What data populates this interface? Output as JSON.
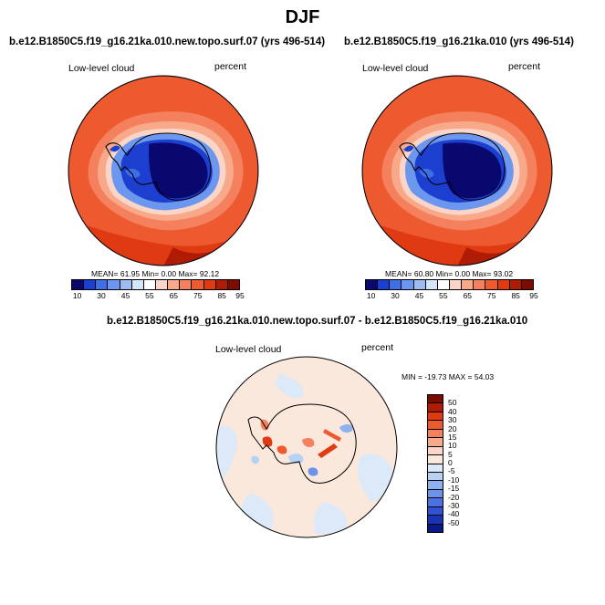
{
  "figure": {
    "title": "DJF"
  },
  "panels": [
    {
      "title": "b.e12.B1850C5.f19_g16.21ka.010.new.topo.surf.07 (yrs 496-514)",
      "left_label": "Low-level cloud",
      "right_label": "percent",
      "stats": "MEAN=  61.95  Min=   0.00  Max=  92.12"
    },
    {
      "title": "b.e12.B1850C5.f19_g16.21ka.010 (yrs 496-514)",
      "left_label": "Low-level cloud",
      "right_label": "percent",
      "stats": "MEAN=  60.80  Min=   0.00  Max=  93.02"
    }
  ],
  "diff_panel": {
    "title": "b.e12.B1850C5.f19_g16.21ka.010.new.topo.surf.07 - b.e12.B1850C5.f19_g16.21ka.010",
    "left_label": "Low-level cloud",
    "right_label": "percent",
    "minmax": "MIN = -19.73 MAX =  54.03"
  },
  "colorbar_abs": {
    "colors": [
      "#08086e",
      "#1c3fd0",
      "#3f6fe6",
      "#6c97ee",
      "#9dbdf2",
      "#d6e6fa",
      "#ffffff",
      "#fbd6c8",
      "#f7a98a",
      "#f4805d",
      "#ee5a30",
      "#e03a12",
      "#b01b06",
      "#7a0c00"
    ],
    "labels": [
      "10",
      "30",
      "45",
      "55",
      "65",
      "75",
      "85",
      "95"
    ]
  },
  "colorbar_diff": {
    "colors": [
      "#7a0c00",
      "#b01b06",
      "#e03a12",
      "#ee5a30",
      "#f4805d",
      "#f7a98a",
      "#fbd6c8",
      "#fbe8dc",
      "#dbe9f8",
      "#b8d2f3",
      "#8db2ef",
      "#6b93ea",
      "#4a72e3",
      "#2f52d6",
      "#1a35b4",
      "#0a188a"
    ],
    "labels": [
      "50",
      "40",
      "30",
      "20",
      "15",
      "10",
      "5",
      "0",
      "-5",
      "-10",
      "-15",
      "-20",
      "-30",
      "-40",
      "-50"
    ]
  },
  "chart_data": [
    {
      "type": "heatmap",
      "title": "b.e12.B1850C5.f19_g16.21ka.010.new.topo.surf.07 (yrs 496-514)",
      "variable": "Low-level cloud",
      "units": "percent",
      "projection": "south-polar stereographic",
      "mean": 61.95,
      "min": 0.0,
      "max": 92.12,
      "levels": [
        10,
        30,
        45,
        55,
        65,
        75,
        85,
        95
      ]
    },
    {
      "type": "heatmap",
      "title": "b.e12.B1850C5.f19_g16.21ka.010 (yrs 496-514)",
      "variable": "Low-level cloud",
      "units": "percent",
      "projection": "south-polar stereographic",
      "mean": 60.8,
      "min": 0.0,
      "max": 93.02,
      "levels": [
        10,
        30,
        45,
        55,
        65,
        75,
        85,
        95
      ]
    },
    {
      "type": "heatmap",
      "title": "b.e12.B1850C5.f19_g16.21ka.010.new.topo.surf.07 - b.e12.B1850C5.f19_g16.21ka.010",
      "variable": "Low-level cloud",
      "units": "percent",
      "projection": "south-polar stereographic",
      "min": -19.73,
      "max": 54.03,
      "levels": [
        -50,
        -40,
        -30,
        -20,
        -15,
        -10,
        -5,
        0,
        5,
        10,
        15,
        20,
        30,
        40,
        50
      ]
    }
  ]
}
